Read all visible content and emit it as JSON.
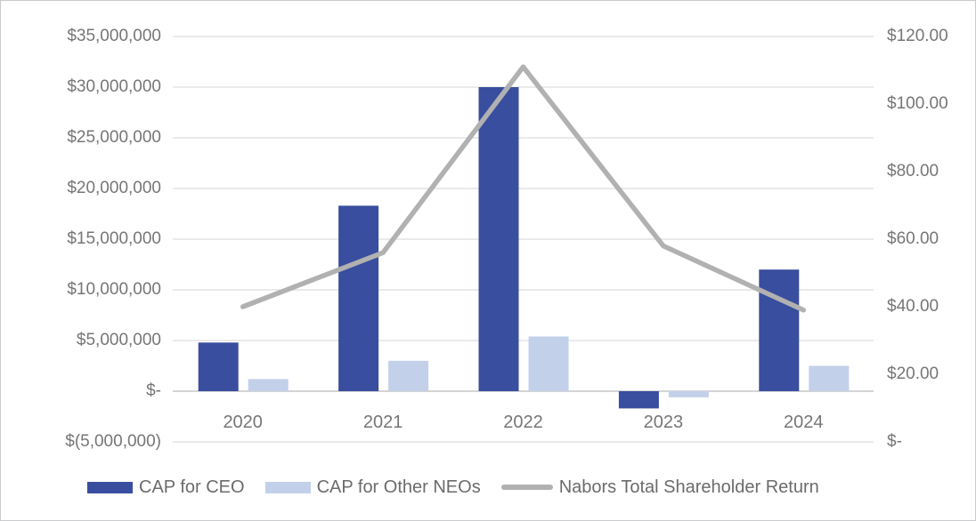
{
  "chart_data": {
    "type": "bar",
    "subtype": "combo-bar-line-dual-axis",
    "title": "",
    "categories": [
      "2020",
      "2021",
      "2022",
      "2023",
      "2024"
    ],
    "series": [
      {
        "name": "CAP for CEO",
        "type": "bar",
        "axis": "left",
        "color": "#3a4e9f",
        "values": [
          4800000,
          18300000,
          30000000,
          -1700000,
          12000000
        ]
      },
      {
        "name": "CAP for Other NEOs",
        "type": "bar",
        "axis": "left",
        "color": "#c3d0ea",
        "values": [
          1200000,
          3000000,
          5400000,
          -600000,
          2500000
        ]
      },
      {
        "name": "Nabors Total Shareholder Return",
        "type": "line",
        "axis": "right",
        "color": "#b1b1b1",
        "values": [
          40,
          56,
          111,
          58,
          39
        ]
      }
    ],
    "left_axis": {
      "min": -5000000,
      "max": 35000000,
      "step": 5000000,
      "ticks": [
        "$35,000,000",
        "$30,000,000",
        "$25,000,000",
        "$20,000,000",
        "$15,000,000",
        "$10,000,000",
        "$5,000,000",
        "$-",
        "$(5,000,000)"
      ]
    },
    "right_axis": {
      "min": 0,
      "max": 120,
      "step": 20,
      "ticks": [
        "$120.00",
        "$100.00",
        "$80.00",
        "$60.00",
        "$40.00",
        "$20.00",
        "$-"
      ]
    },
    "grid": true,
    "legend_position": "bottom",
    "colors": {
      "gridline": "#e3e3e3",
      "zero_axis_line": "#c6c6c6",
      "axis_text": "#767676",
      "legend_text": "#6b6b6b",
      "frame_border": "#c9cbcd",
      "background": "#ffffff"
    }
  }
}
